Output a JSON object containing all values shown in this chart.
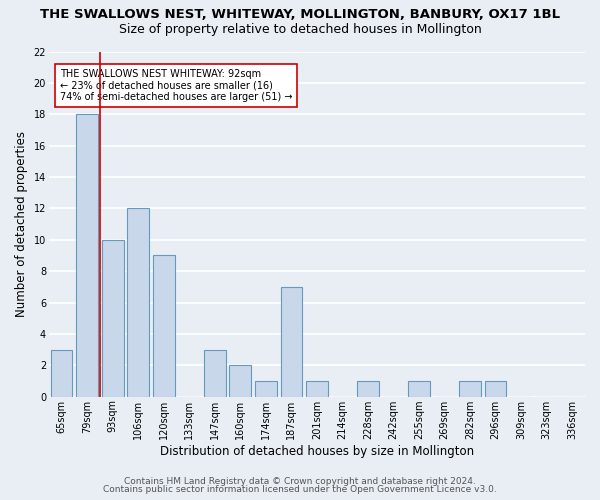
{
  "title": "THE SWALLOWS NEST, WHITEWAY, MOLLINGTON, BANBURY, OX17 1BL",
  "subtitle": "Size of property relative to detached houses in Mollington",
  "xlabel": "Distribution of detached houses by size in Mollington",
  "ylabel": "Number of detached properties",
  "categories": [
    "65sqm",
    "79sqm",
    "93sqm",
    "106sqm",
    "120sqm",
    "133sqm",
    "147sqm",
    "160sqm",
    "174sqm",
    "187sqm",
    "201sqm",
    "214sqm",
    "228sqm",
    "242sqm",
    "255sqm",
    "269sqm",
    "282sqm",
    "296sqm",
    "309sqm",
    "323sqm",
    "336sqm"
  ],
  "values": [
    3,
    18,
    10,
    12,
    9,
    0,
    3,
    2,
    1,
    7,
    1,
    0,
    1,
    0,
    1,
    0,
    1,
    1,
    0,
    0,
    0
  ],
  "bar_color": "#c8d8ea",
  "bar_edge_color": "#6699bb",
  "highlight_index": 2,
  "highlight_line_color": "#cc0000",
  "ylim": [
    0,
    22
  ],
  "yticks": [
    0,
    2,
    4,
    6,
    8,
    10,
    12,
    14,
    16,
    18,
    20,
    22
  ],
  "annotation_text": "THE SWALLOWS NEST WHITEWAY: 92sqm\n← 23% of detached houses are smaller (16)\n74% of semi-detached houses are larger (51) →",
  "annotation_box_color": "#ffffff",
  "annotation_box_edge": "#cc0000",
  "footer1": "Contains HM Land Registry data © Crown copyright and database right 2024.",
  "footer2": "Contains public sector information licensed under the Open Government Licence v3.0.",
  "background_color": "#e8eef4",
  "grid_color": "#ffffff",
  "title_fontsize": 9.5,
  "subtitle_fontsize": 9,
  "axis_label_fontsize": 8.5,
  "tick_fontsize": 7,
  "annotation_fontsize": 7,
  "footer_fontsize": 6.5
}
